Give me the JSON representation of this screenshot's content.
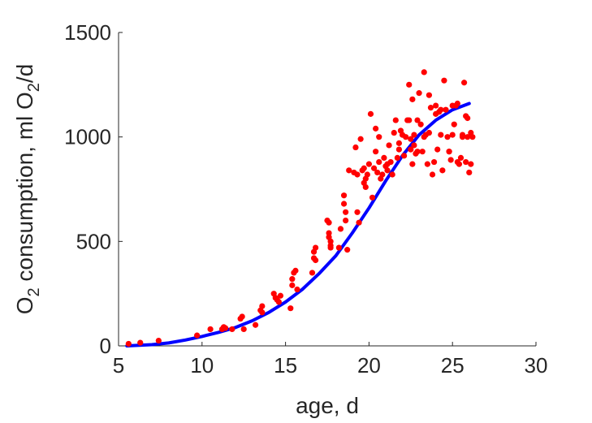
{
  "chart_data": {
    "type": "scatter",
    "title": "",
    "xlabel": "age, d",
    "ylabel": {
      "parts": [
        {
          "text": "O",
          "sub": false
        },
        {
          "text": "2",
          "sub": true
        },
        {
          "text": " consumption, ml O",
          "sub": false
        },
        {
          "text": "2",
          "sub": true
        },
        {
          "text": "/d",
          "sub": false
        }
      ]
    },
    "xlim": [
      5,
      30
    ],
    "ylim": [
      0,
      1500
    ],
    "xticks": [
      5,
      10,
      15,
      20,
      25,
      30
    ],
    "yticks": [
      0,
      500,
      1000,
      1500
    ],
    "grid": false,
    "colors": {
      "points": "#ff0000",
      "fit": "#0000ff",
      "axis": "#262626"
    },
    "series": [
      {
        "kind": "points",
        "x": [
          5.6,
          6.3,
          7.4,
          9.7,
          10.5,
          11.2,
          11.3,
          11.4,
          11.8,
          12.3,
          12.4,
          12.5,
          13.2,
          13.5,
          13.6,
          13.6,
          14.3,
          14.4,
          14.5,
          14.6,
          14.7,
          15.3,
          15.4,
          15.4,
          15.5,
          15.6,
          15.7,
          16.6,
          16.7,
          16.7,
          16.8,
          16.8,
          17.5,
          17.6,
          17.6,
          17.6,
          17.7,
          17.7,
          17.7,
          18.2,
          18.3,
          18.5,
          18.5,
          18.6,
          18.6,
          18.7,
          18.8,
          19.1,
          19.2,
          19.3,
          19.3,
          19.4,
          19.5,
          19.6,
          19.7,
          19.7,
          19.8,
          19.8,
          19.9,
          20.0,
          20.1,
          20.2,
          20.3,
          20.4,
          20.4,
          20.5,
          20.6,
          20.6,
          20.7,
          20.8,
          20.9,
          21.0,
          21.1,
          21.1,
          21.2,
          21.3,
          21.4,
          21.5,
          21.6,
          21.7,
          21.8,
          21.8,
          21.9,
          22.0,
          22.1,
          22.2,
          22.3,
          22.4,
          22.5,
          22.5,
          22.6,
          22.6,
          22.7,
          22.7,
          22.8,
          22.9,
          23.0,
          23.1,
          23.2,
          23.3,
          23.3,
          23.4,
          23.5,
          23.6,
          23.7,
          23.8,
          23.9,
          24.0,
          24.1,
          24.2,
          24.3,
          24.4,
          24.5,
          24.6,
          24.7,
          24.8,
          24.9,
          25.0,
          25.1,
          25.2,
          25.3,
          25.4,
          25.5,
          25.6,
          25.7,
          25.8,
          25.9,
          26.0,
          26.1,
          26.2,
          24.0,
          24.3,
          25.0,
          25.3,
          25.6,
          25.9,
          26.1,
          22.4,
          22.9,
          23.6,
          24.8,
          25.8
        ],
        "y": [
          10,
          15,
          25,
          50,
          80,
          80,
          90,
          85,
          80,
          130,
          140,
          80,
          100,
          170,
          190,
          160,
          250,
          230,
          220,
          210,
          240,
          180,
          320,
          290,
          350,
          360,
          270,
          350,
          420,
          450,
          470,
          410,
          600,
          590,
          540,
          520,
          500,
          480,
          470,
          470,
          560,
          720,
          680,
          640,
          600,
          460,
          840,
          830,
          950,
          820,
          640,
          590,
          990,
          840,
          850,
          780,
          800,
          760,
          820,
          870,
          1110,
          710,
          850,
          1040,
          930,
          830,
          880,
          1000,
          800,
          820,
          900,
          860,
          840,
          870,
          960,
          880,
          820,
          1020,
          1080,
          900,
          970,
          940,
          1030,
          1010,
          910,
          1000,
          1080,
          1250,
          990,
          940,
          870,
          1180,
          960,
          1010,
          920,
          1080,
          1210,
          1060,
          930,
          1310,
          1000,
          1010,
          870,
          1020,
          1140,
          820,
          880,
          1110,
          940,
          1120,
          1010,
          840,
          1270,
          1130,
          1000,
          930,
          890,
          1010,
          1060,
          1150,
          880,
          870,
          900,
          1010,
          1260,
          1100,
          1000,
          830,
          870,
          1000,
          1150,
          1130,
          1150,
          1160,
          1000,
          1090,
          1020,
          1080,
          930,
          1200,
          930,
          880
        ],
        "marker_size": 3.6
      },
      {
        "kind": "line",
        "x": [
          5.5,
          6,
          7,
          8,
          9,
          10,
          11,
          12,
          13,
          14,
          15,
          16,
          17,
          18,
          19,
          20,
          21,
          22,
          23,
          24,
          25,
          26
        ],
        "y": [
          0,
          2,
          6,
          14,
          28,
          45,
          65,
          88,
          120,
          160,
          210,
          270,
          345,
          430,
          540,
          660,
          790,
          910,
          1010,
          1080,
          1130,
          1160
        ],
        "line_width": 4
      }
    ]
  }
}
